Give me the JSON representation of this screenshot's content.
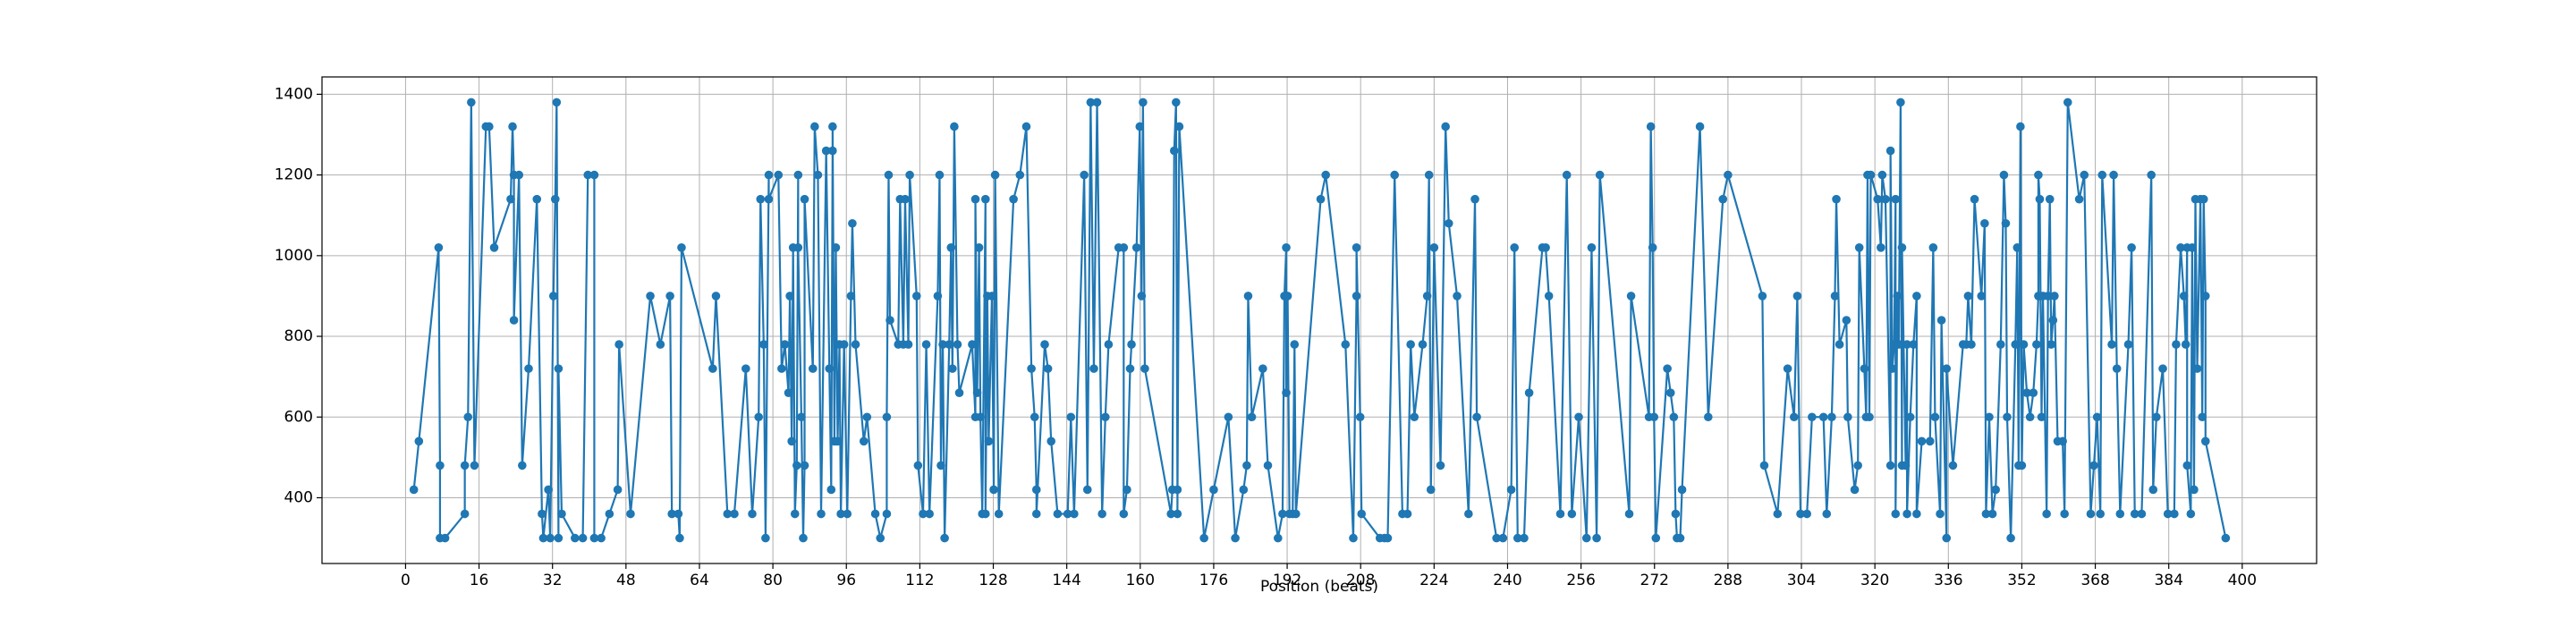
{
  "chart_data": {
    "type": "line",
    "xlabel": "Position (beats)",
    "color": "#1f77b4",
    "markers": true,
    "grid": true,
    "xlim": [
      -18.2,
      416.2
    ],
    "ylim": [
      237,
      1443
    ],
    "xticks": [
      0,
      16,
      32,
      48,
      64,
      80,
      96,
      112,
      128,
      144,
      160,
      176,
      192,
      208,
      224,
      240,
      256,
      272,
      288,
      304,
      320,
      336,
      352,
      368,
      384,
      400
    ],
    "yticks": [
      400,
      600,
      800,
      1000,
      1200,
      1400
    ],
    "x": [
      1.8,
      2.9,
      7.2,
      7.5,
      7.5,
      8.6,
      12.9,
      12.9,
      13.6,
      14.3,
      15,
      17.5,
      18.2,
      19.3,
      22.9,
      23.3,
      23.6,
      23.6,
      24.7,
      25.4,
      26.8,
      28.6,
      29.7,
      30,
      31.1,
      31.5,
      32.2,
      32.6,
      32.9,
      33.3,
      33.3,
      34,
      36.9,
      38.6,
      39.7,
      41.1,
      41.1,
      42.6,
      44.4,
      46.2,
      46.5,
      49,
      53.3,
      55.5,
      57.6,
      58,
      59.4,
      59.7,
      60.1,
      66.9,
      67.6,
      70.1,
      71.6,
      74.1,
      75.5,
      76.9,
      77.3,
      78,
      78.4,
      79.1,
      79.1,
      81.2,
      81.9,
      82.6,
      83.4,
      83.7,
      84.1,
      84.4,
      84.8,
      85.2,
      85.5,
      85.5,
      86.2,
      86.6,
      86.9,
      86.9,
      88.7,
      89.1,
      89.8,
      90.5,
      91.6,
      92.3,
      92.7,
      93,
      93,
      93.4,
      93.7,
      94.1,
      94.5,
      94.8,
      95.5,
      96.2,
      97,
      97.3,
      98,
      99.8,
      100.5,
      102.3,
      103.4,
      104.8,
      104.8,
      105.2,
      105.5,
      107.3,
      107.7,
      108.4,
      108.8,
      109.5,
      109.8,
      111.3,
      111.6,
      112.7,
      113.4,
      114.1,
      115.9,
      116.3,
      116.6,
      117,
      117.4,
      118.4,
      118.8,
      119.1,
      119.5,
      120.2,
      120.6,
      123.4,
      124.1,
      124.1,
      124.5,
      124.9,
      125.2,
      125.6,
      126.3,
      126.3,
      126.7,
      127,
      127.7,
      128.1,
      128.4,
      129.2,
      132.4,
      133.8,
      135.2,
      136.3,
      137,
      137.4,
      137.4,
      139.2,
      139.9,
      140.6,
      142,
      144.2,
      144.9,
      145.6,
      147.8,
      148.5,
      149.2,
      149.9,
      150.6,
      151.7,
      152.4,
      153.1,
      155.3,
      156.4,
      156.4,
      157.1,
      157.8,
      158.1,
      159.2,
      159.9,
      160.3,
      160.6,
      161,
      166.7,
      167,
      167.4,
      167.8,
      168.1,
      168.1,
      168.5,
      173.9,
      176,
      179.2,
      180.7,
      182.5,
      183.2,
      183.5,
      184.3,
      186.7,
      187.8,
      190,
      191,
      191.4,
      191.8,
      191.8,
      192.1,
      192.5,
      193.2,
      193.6,
      193.9,
      199.3,
      200.4,
      204.7,
      206.4,
      207.1,
      207.1,
      207.9,
      208.2,
      212.2,
      213.2,
      213.9,
      215.4,
      217.1,
      218.2,
      218.9,
      219.7,
      221.5,
      222.5,
      222.9,
      223.3,
      224,
      225.4,
      226.5,
      227.2,
      229,
      231.5,
      232.9,
      233.3,
      237.6,
      239,
      240.8,
      241.5,
      242.2,
      243.6,
      244.7,
      247.6,
      248.3,
      249,
      251.5,
      252.9,
      254,
      255.5,
      257.2,
      258.3,
      259.4,
      260.1,
      266.5,
      266.9,
      270.8,
      271.2,
      271.6,
      271.9,
      272.3,
      274.8,
      275.5,
      276.2,
      276.6,
      276.9,
      277.6,
      278,
      281.9,
      283.7,
      286.9,
      288,
      295.5,
      295.9,
      298.8,
      301,
      302.4,
      303.1,
      303.8,
      305.2,
      306.3,
      308.8,
      309.5,
      310.6,
      311.3,
      311.6,
      312.3,
      313.8,
      314.1,
      315.6,
      316.3,
      316.6,
      317.7,
      318.1,
      318.4,
      318.8,
      319.1,
      320.6,
      321.3,
      321.6,
      322.3,
      323.4,
      323.4,
      323.8,
      324.2,
      324.5,
      324.5,
      324.9,
      325.2,
      325.6,
      325.9,
      325.9,
      326.7,
      327,
      327,
      327.7,
      328.4,
      329.1,
      329.1,
      330.2,
      332,
      332.7,
      333.1,
      334.2,
      334.5,
      335.6,
      335.6,
      337,
      339.2,
      339.9,
      340.3,
      341,
      341.7,
      343.2,
      343.9,
      344.2,
      344.9,
      345.6,
      346.3,
      347.4,
      348.1,
      348.5,
      348.8,
      349.6,
      350.6,
      351,
      351.3,
      351.7,
      352,
      352.4,
      353.1,
      353.8,
      354.5,
      355.2,
      355.6,
      355.6,
      355.9,
      356.3,
      356.6,
      357.4,
      357.7,
      358.1,
      358.4,
      358.8,
      359.1,
      359.8,
      360.9,
      361.3,
      362,
      364.5,
      365.6,
      367,
      367.7,
      368.4,
      369.1,
      369.5,
      371.6,
      372,
      372.7,
      373.4,
      375.2,
      375.9,
      376.6,
      378.1,
      380.2,
      380.6,
      381.3,
      382.7,
      383.8,
      385.2,
      385.6,
      386.6,
      387.3,
      387.7,
      388,
      388,
      388.8,
      389.1,
      389.5,
      389.8,
      390.2,
      390.9,
      391.3,
      391.6,
      392,
      392,
      396.4
    ],
    "values": [
      420,
      540,
      1020,
      480,
      300,
      300,
      360,
      480,
      600,
      1380,
      480,
      1320,
      1320,
      1020,
      1140,
      1320,
      1200,
      840,
      1200,
      480,
      720,
      1140,
      360,
      300,
      420,
      300,
      900,
      1140,
      1380,
      300,
      720,
      360,
      300,
      300,
      1200,
      1200,
      300,
      300,
      360,
      420,
      780,
      360,
      900,
      780,
      900,
      360,
      360,
      300,
      1020,
      720,
      900,
      360,
      360,
      720,
      360,
      600,
      1140,
      780,
      300,
      1200,
      1140,
      1200,
      720,
      780,
      660,
      900,
      540,
      1020,
      360,
      480,
      1200,
      1020,
      600,
      300,
      480,
      1140,
      720,
      1320,
      1200,
      360,
      1260,
      720,
      420,
      1260,
      1320,
      540,
      1020,
      540,
      780,
      360,
      780,
      360,
      900,
      1080,
      780,
      540,
      600,
      360,
      300,
      360,
      600,
      1200,
      840,
      780,
      1140,
      780,
      1140,
      780,
      1200,
      900,
      480,
      360,
      780,
      360,
      900,
      1200,
      480,
      780,
      300,
      780,
      1020,
      720,
      1320,
      780,
      660,
      780,
      600,
      1140,
      660,
      1020,
      600,
      360,
      1140,
      360,
      900,
      540,
      900,
      420,
      1200,
      360,
      1140,
      1200,
      1320,
      720,
      600,
      420,
      360,
      780,
      720,
      540,
      360,
      360,
      600,
      360,
      1200,
      420,
      1380,
      720,
      1380,
      360,
      600,
      780,
      1020,
      1020,
      360,
      420,
      720,
      780,
      1020,
      1320,
      900,
      1380,
      720,
      360,
      420,
      1260,
      1380,
      420,
      360,
      1320,
      300,
      420,
      600,
      300,
      420,
      480,
      900,
      600,
      720,
      480,
      300,
      360,
      900,
      1020,
      660,
      900,
      360,
      360,
      780,
      360,
      1140,
      1200,
      780,
      300,
      900,
      1020,
      600,
      360,
      300,
      300,
      300,
      1200,
      360,
      360,
      780,
      600,
      780,
      900,
      1200,
      420,
      1020,
      480,
      1320,
      1080,
      900,
      360,
      1140,
      600,
      300,
      300,
      420,
      1020,
      300,
      300,
      660,
      1020,
      1020,
      900,
      360,
      1200,
      360,
      600,
      300,
      1020,
      300,
      1200,
      360,
      900,
      600,
      1320,
      1020,
      600,
      300,
      720,
      660,
      600,
      360,
      300,
      300,
      420,
      1320,
      600,
      1140,
      1200,
      900,
      480,
      360,
      720,
      600,
      900,
      360,
      360,
      600,
      600,
      360,
      600,
      900,
      1140,
      780,
      840,
      600,
      420,
      480,
      1020,
      720,
      600,
      1200,
      600,
      1200,
      1140,
      1020,
      1200,
      1140,
      480,
      1260,
      720,
      780,
      1140,
      360,
      900,
      780,
      1380,
      480,
      1020,
      480,
      780,
      360,
      600,
      780,
      900,
      360,
      540,
      540,
      1020,
      600,
      360,
      840,
      300,
      720,
      480,
      780,
      780,
      900,
      780,
      1140,
      900,
      1080,
      360,
      600,
      360,
      420,
      780,
      1200,
      1080,
      600,
      300,
      780,
      1020,
      480,
      1320,
      480,
      780,
      660,
      600,
      660,
      780,
      900,
      1200,
      1140,
      600,
      900,
      360,
      900,
      1140,
      780,
      840,
      900,
      540,
      540,
      360,
      1380,
      1140,
      1200,
      360,
      480,
      600,
      360,
      1200,
      780,
      1200,
      720,
      360,
      780,
      1020,
      360,
      360,
      1200,
      420,
      600,
      720,
      360,
      360,
      780,
      1020,
      900,
      780,
      1020,
      480,
      360,
      1020,
      420,
      1140,
      720,
      1140,
      600,
      1140,
      900,
      540,
      300
    ]
  }
}
